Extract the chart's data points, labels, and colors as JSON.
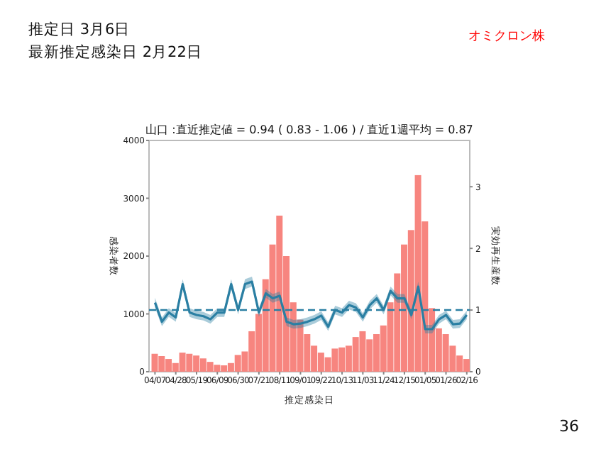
{
  "chart_data": {
    "type": "bar",
    "title": "山口 :直近推定値 = 0.94 ( 0.83 - 1.06 ) / 直近1週平均 = 0.87",
    "xlabel": "推定感染日",
    "ylabel": "感染者数",
    "y2label": "実効再生産数",
    "annotations": [
      "推定日  3月6日",
      "最新推定感染日  2月22日",
      "オミクロン株",
      "36"
    ],
    "categories": [
      "04/07",
      null,
      null,
      "04/28",
      null,
      null,
      "05/19",
      null,
      null,
      "06/09",
      null,
      null,
      "06/30",
      null,
      null,
      "07/21",
      null,
      null,
      "08/11",
      null,
      null,
      "09/01",
      null,
      null,
      "09/22",
      null,
      null,
      "10/13",
      null,
      null,
      "11/03",
      null,
      null,
      "11/24",
      null,
      null,
      "12/15",
      null,
      null,
      "01/05",
      null,
      null,
      "01/26",
      null,
      null,
      "02/16"
    ],
    "series": [
      {
        "color": "#f7857f",
        "values": [
          310,
          270,
          220,
          150,
          330,
          310,
          280,
          230,
          170,
          120,
          110,
          150,
          290,
          350,
          700,
          1000,
          1600,
          2200,
          2700,
          2000,
          1200,
          900,
          650,
          450,
          330,
          250,
          400,
          420,
          450,
          600,
          700,
          560,
          650,
          800,
          1200,
          1700,
          2200,
          2450,
          3400,
          2600,
          1100,
          750,
          650,
          450,
          280,
          220
        ]
      },
      {
        "type": "line",
        "axis": "y2",
        "color": "#2a7fa3",
        "values": [
          1.12,
          0.81,
          0.96,
          0.88,
          1.42,
          0.96,
          0.92,
          0.9,
          0.85,
          0.96,
          0.96,
          1.42,
          1.0,
          1.42,
          1.46,
          0.96,
          1.27,
          1.19,
          1.23,
          0.81,
          0.77,
          0.78,
          0.81,
          0.85,
          0.91,
          0.73,
          1.0,
          0.96,
          1.08,
          1.04,
          0.88,
          1.08,
          1.19,
          1.0,
          1.31,
          1.19,
          1.19,
          0.92,
          1.38,
          0.69,
          0.69,
          0.85,
          0.92,
          0.77,
          0.78,
          0.92
        ],
        "lower": [
          1.04,
          0.74,
          0.89,
          0.81,
          1.34,
          0.89,
          0.85,
          0.83,
          0.78,
          0.89,
          0.89,
          1.34,
          0.93,
          1.34,
          1.38,
          0.89,
          1.2,
          1.12,
          1.16,
          0.74,
          0.7,
          0.71,
          0.74,
          0.78,
          0.84,
          0.66,
          0.93,
          0.89,
          1.01,
          0.97,
          0.81,
          1.01,
          1.12,
          0.93,
          1.24,
          1.12,
          1.12,
          0.85,
          1.3,
          0.62,
          0.62,
          0.78,
          0.85,
          0.7,
          0.71,
          0.85
        ],
        "upper": [
          1.2,
          0.88,
          1.03,
          0.95,
          1.5,
          1.03,
          0.99,
          0.97,
          0.92,
          1.03,
          1.03,
          1.5,
          1.07,
          1.5,
          1.54,
          1.03,
          1.34,
          1.26,
          1.3,
          0.88,
          0.84,
          0.85,
          0.88,
          0.92,
          0.98,
          0.8,
          1.07,
          1.03,
          1.15,
          1.11,
          0.95,
          1.15,
          1.26,
          1.07,
          1.38,
          1.26,
          1.26,
          0.99,
          1.46,
          0.76,
          0.76,
          0.92,
          0.99,
          0.84,
          0.85,
          0.99
        ]
      }
    ],
    "ylim": [
      0,
      4000
    ],
    "yticks": [
      0,
      1000,
      2000,
      3000,
      4000
    ],
    "y2lim": [
      0,
      3.75
    ],
    "y2ticks": [
      0,
      1,
      2,
      3
    ],
    "ref_lines": [
      {
        "axis": "y2",
        "value": 1,
        "color": "#2a7fa3",
        "line_style": "dashed"
      }
    ],
    "grid": false
  }
}
